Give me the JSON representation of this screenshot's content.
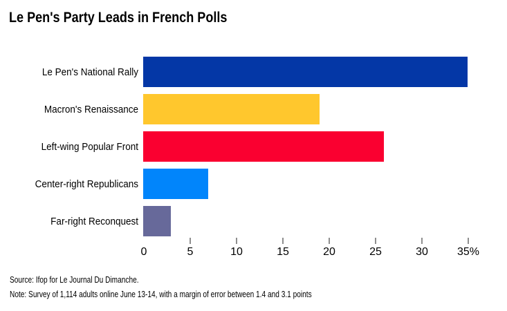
{
  "title": "Le Pen's Party Leads in French Polls",
  "footer": {
    "source_line": "Source: Ifop for Le Journal Du Dimanche.",
    "note_line": "Note: Survey of 1,114 adults online June 13-14, with a margin of error between 1.4 and 3.1 points"
  },
  "chart_data": {
    "type": "bar",
    "orientation": "horizontal",
    "title": "Le Pen's Party Leads in French Polls",
    "categories": [
      "Le Pen's National Rally",
      "Macron's Renaissance",
      "Left-wing Popular Front",
      "Center-right Republicans",
      "Far-right Reconquest"
    ],
    "values": [
      35,
      19,
      26,
      7,
      3
    ],
    "unit": "%",
    "bar_colors": [
      "#0437a6",
      "#ffc72d",
      "#fa0030",
      "#0185fb",
      "#67699a"
    ],
    "xlim": [
      0,
      35
    ],
    "x_ticks": [
      0,
      5,
      10,
      15,
      20,
      25,
      30,
      35
    ],
    "x_tick_labels": [
      "0",
      "5",
      "10",
      "15",
      "20",
      "25",
      "30",
      "35%"
    ],
    "grid": false,
    "legend": "none",
    "tick_mark_color": "#8e8e8e"
  }
}
